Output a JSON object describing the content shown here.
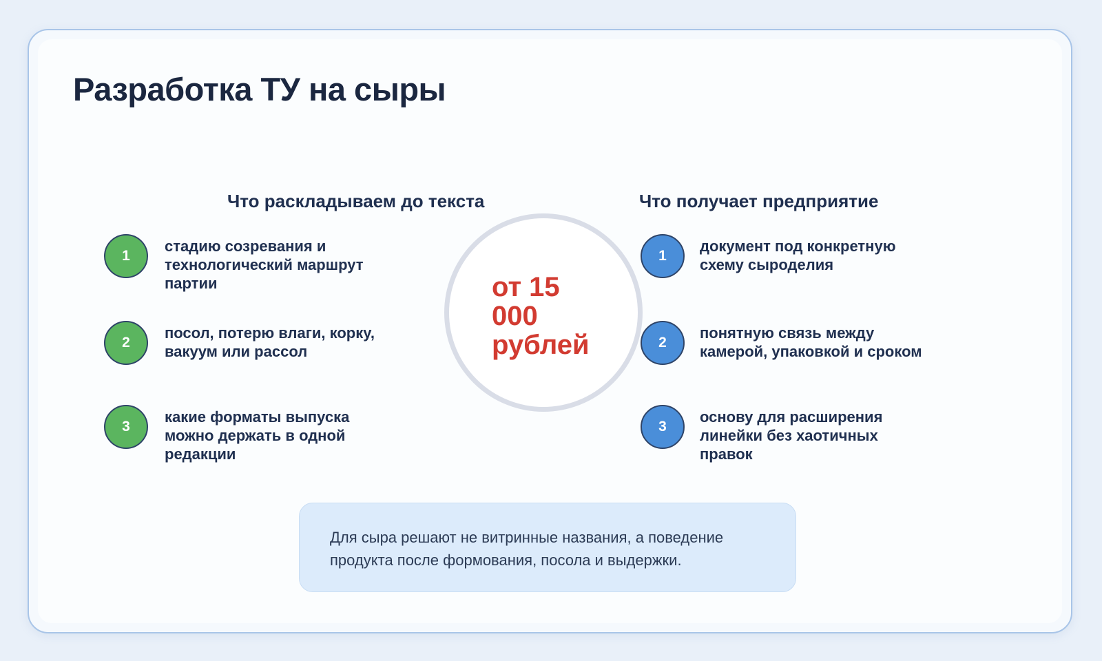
{
  "page": {
    "title": "Разработка ТУ на сыры"
  },
  "columns": {
    "left": {
      "header": "Что раскладываем до текста",
      "items": [
        {
          "number": "1",
          "lines": [
            "стадию созревания и",
            "технологический маршрут",
            "партии"
          ]
        },
        {
          "number": "2",
          "lines": [
            "посол, потерю влаги, корку,",
            "вакуум или рассол"
          ]
        },
        {
          "number": "3",
          "lines": [
            "какие форматы выпуска",
            "можно держать в одной",
            "редакции"
          ]
        }
      ]
    },
    "right": {
      "header": "Что получает предприятие",
      "items": [
        {
          "number": "1",
          "lines": [
            "документ под конкретную",
            "схему сыроделия"
          ]
        },
        {
          "number": "2",
          "lines": [
            "понятную связь между",
            "камерой, упаковкой и сроком"
          ]
        },
        {
          "number": "3",
          "lines": [
            "основу для расширения",
            "линейки без хаотичных",
            "правок"
          ]
        }
      ]
    }
  },
  "price_badge": {
    "lines": [
      "от 15",
      "000",
      "рублей"
    ]
  },
  "note": {
    "lines": [
      "Для сыра решают не витринные названия, а поведение",
      "продукта после формования, посола и выдержки."
    ]
  },
  "colors": {
    "page_bg": "#e9f0f9",
    "card_bg": "#f5f9fd",
    "card_border": "#a9c5e8",
    "ink": "#203050",
    "ink_dark": "#1b2740",
    "green": "#5bb55f",
    "blue": "#4a8ed9",
    "bullet_border": "#2e4468",
    "red": "#d23b31",
    "ring": "#d9dde7",
    "note_bg": "#dcebfb",
    "note_border": "#c8ddf4",
    "note_ink": "#2c3b55"
  }
}
